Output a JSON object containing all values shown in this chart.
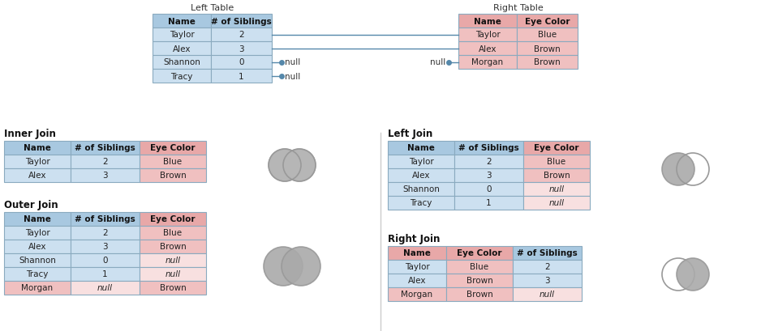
{
  "bg_color": "#ffffff",
  "left_table_title": "Left Table",
  "right_table_title": "Right Table",
  "left_table_headers": [
    "Name",
    "# of Siblings"
  ],
  "left_table_rows": [
    [
      "Taylor",
      "2"
    ],
    [
      "Alex",
      "3"
    ],
    [
      "Shannon",
      "0"
    ],
    [
      "Tracy",
      "1"
    ]
  ],
  "right_table_headers": [
    "Name",
    "Eye Color"
  ],
  "right_table_rows": [
    [
      "Taylor",
      "Blue"
    ],
    [
      "Alex",
      "Brown"
    ],
    [
      "Morgan",
      "Brown"
    ]
  ],
  "header_color_blue": "#a8c8e0",
  "header_color_pink": "#e8a8a8",
  "row_color_blue": "#cce0f0",
  "row_color_pink": "#f0c0c0",
  "row_color_pink_light": "#f8e0e0",
  "border_color": "#8aaabf",
  "inner_join_title": "Inner Join",
  "inner_join_headers": [
    "Name",
    "# of Siblings",
    "Eye Color"
  ],
  "inner_join_rows": [
    [
      "Taylor",
      "2",
      "Blue"
    ],
    [
      "Alex",
      "3",
      "Brown"
    ]
  ],
  "inner_join_col_colors": [
    [
      "blue",
      "blue",
      "pink"
    ],
    [
      "blue",
      "blue",
      "pink"
    ]
  ],
  "outer_join_title": "Outer Join",
  "outer_join_headers": [
    "Name",
    "# of Siblings",
    "Eye Color"
  ],
  "outer_join_rows": [
    [
      "Taylor",
      "2",
      "Blue"
    ],
    [
      "Alex",
      "3",
      "Brown"
    ],
    [
      "Shannon",
      "0",
      "null"
    ],
    [
      "Tracy",
      "1",
      "null"
    ],
    [
      "Morgan",
      "null",
      "Brown"
    ]
  ],
  "outer_join_col_colors": [
    [
      "blue",
      "blue",
      "pink"
    ],
    [
      "blue",
      "blue",
      "pink"
    ],
    [
      "blue",
      "blue",
      "pinklight"
    ],
    [
      "blue",
      "blue",
      "pinklight"
    ],
    [
      "pink",
      "pinklight",
      "pink"
    ]
  ],
  "left_join_title": "Left Join",
  "left_join_headers": [
    "Name",
    "# of Siblings",
    "Eye Color"
  ],
  "left_join_rows": [
    [
      "Taylor",
      "2",
      "Blue"
    ],
    [
      "Alex",
      "3",
      "Brown"
    ],
    [
      "Shannon",
      "0",
      "null"
    ],
    [
      "Tracy",
      "1",
      "null"
    ]
  ],
  "left_join_col_colors": [
    [
      "blue",
      "blue",
      "pink"
    ],
    [
      "blue",
      "blue",
      "pink"
    ],
    [
      "blue",
      "blue",
      "pinklight"
    ],
    [
      "blue",
      "blue",
      "pinklight"
    ]
  ],
  "right_join_title": "Right Join",
  "right_join_headers": [
    "Name",
    "Eye Color",
    "# of Siblings"
  ],
  "right_join_rows": [
    [
      "Taylor",
      "Blue",
      "2"
    ],
    [
      "Alex",
      "Brown",
      "3"
    ],
    [
      "Morgan",
      "Brown",
      "null"
    ]
  ],
  "right_join_col_colors": [
    [
      "blue",
      "pink",
      "blue"
    ],
    [
      "blue",
      "pink",
      "blue"
    ],
    [
      "pink",
      "pink",
      "pinklight"
    ]
  ],
  "connector_color": "#5588aa",
  "divider_color": "#cccccc",
  "gray": "#aaaaaa"
}
